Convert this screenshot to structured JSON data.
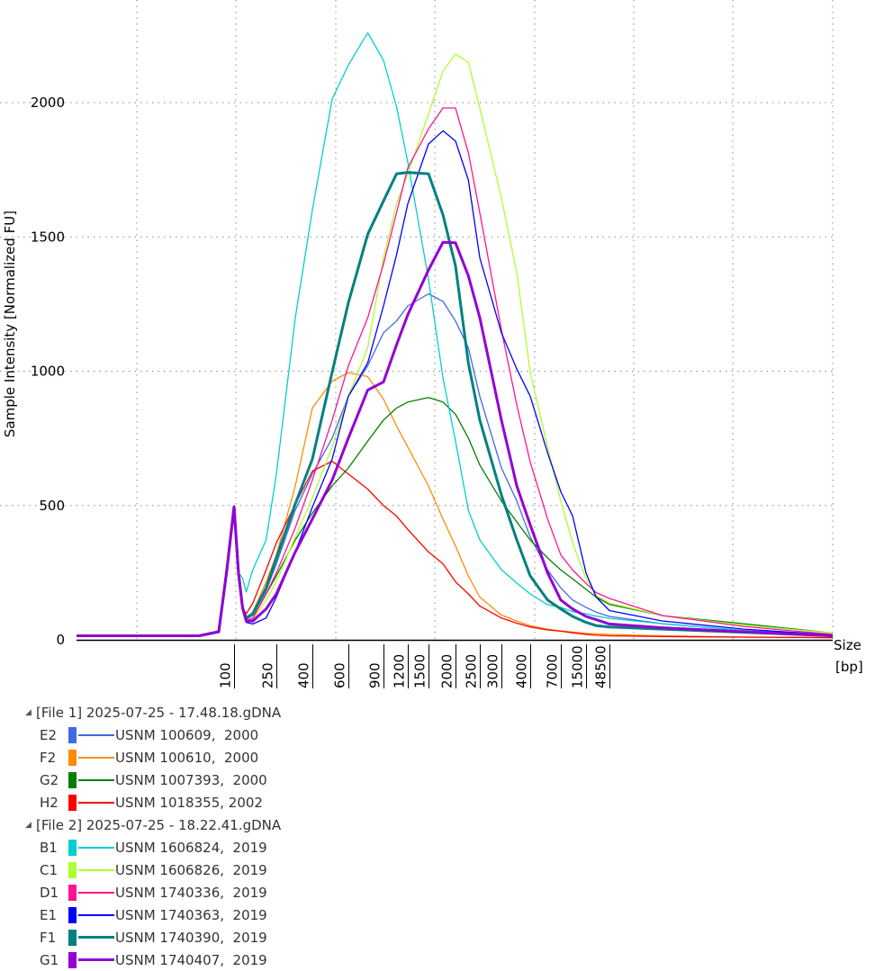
{
  "chart_data": {
    "type": "line",
    "title": "",
    "ylabel": "Sample Intensity [Normalized FU]",
    "xlabel": "Size [bp]",
    "xlabel_line1": "Size",
    "xlabel_line2": "[bp]",
    "ylim": [
      0,
      2380
    ],
    "yticks": [
      0,
      500,
      1000,
      1500,
      2000
    ],
    "ytick_labels": [
      "0",
      "500",
      "1000",
      "1500",
      "2000"
    ],
    "xtick_labels": [
      "100",
      "250",
      "400",
      "600",
      "900",
      "1200",
      "1500",
      "2000",
      "2500",
      "3000",
      "4000",
      "7000",
      "15000",
      "48500"
    ],
    "xticks_bp": [
      100,
      250,
      400,
      600,
      900,
      1200,
      1500,
      2000,
      2500,
      3000,
      4000,
      7000,
      15000,
      48500
    ],
    "grid": "dotted",
    "x_bp": [
      10,
      60,
      80,
      90,
      100,
      110,
      120,
      130,
      150,
      200,
      250,
      320,
      400,
      500,
      600,
      750,
      900,
      1050,
      1200,
      1500,
      1750,
      2000,
      2250,
      2500,
      3000,
      3500,
      4000,
      5500,
      7000,
      10000,
      15000,
      25000,
      48500,
      100000,
      300000,
      1000000
    ],
    "series": [
      {
        "well": "E2",
        "name": "USNM 100609,  2000",
        "color": "#4169E1",
        "thick": false,
        "values": [
          15,
          15,
          30,
          260,
          495,
          250,
          120,
          75,
          92,
          182,
          283,
          483,
          617,
          751,
          907,
          1020,
          1143,
          1187,
          1243,
          1288,
          1260,
          1187,
          1087,
          907,
          640,
          517,
          383,
          260,
          193,
          148,
          121,
          103,
          87,
          60,
          35,
          15
        ]
      },
      {
        "well": "F2",
        "name": "USNM 100610,  2000",
        "color": "#FF8C00",
        "thick": false,
        "values": [
          15,
          15,
          30,
          260,
          495,
          250,
          120,
          81,
          103,
          215,
          316,
          573,
          863,
          963,
          995,
          980,
          896,
          796,
          718,
          573,
          450,
          349,
          238,
          159,
          92,
          70,
          53,
          40,
          33,
          29,
          24,
          22,
          20,
          15,
          10,
          8
        ]
      },
      {
        "well": "G2",
        "name": "USNM 1007393,  2000",
        "color": "#008000",
        "thick": false,
        "values": [
          15,
          15,
          30,
          260,
          495,
          250,
          120,
          70,
          81,
          171,
          238,
          372,
          472,
          573,
          640,
          740,
          818,
          863,
          885,
          902,
          885,
          840,
          751,
          651,
          517,
          439,
          372,
          305,
          260,
          227,
          188,
          159,
          132,
          90,
          60,
          25
        ]
      },
      {
        "well": "H2",
        "name": "USNM 1018355, 2002",
        "color": "#FF0000",
        "thick": false,
        "values": [
          15,
          15,
          30,
          260,
          495,
          250,
          120,
          97,
          136,
          260,
          361,
          505,
          628,
          665,
          617,
          561,
          500,
          461,
          411,
          327,
          283,
          216,
          171,
          126,
          81,
          62,
          48,
          37,
          32,
          26,
          20,
          17,
          15,
          12,
          10,
          8
        ]
      },
      {
        "well": "B1",
        "name": "USNM 1606824,  2019",
        "color": "#00CED1",
        "thick": false,
        "values": [
          15,
          15,
          30,
          260,
          495,
          250,
          230,
          178,
          261,
          372,
          616,
          1199,
          1600,
          2013,
          2140,
          2260,
          2157,
          1985,
          1779,
          1343,
          975,
          740,
          482,
          372,
          261,
          211,
          171,
          131,
          121,
          105,
          97,
          88,
          80,
          60,
          35,
          15
        ]
      },
      {
        "well": "C1",
        "name": "USNM 1606826,  2019",
        "color": "#ADFF2F",
        "thick": false,
        "values": [
          15,
          15,
          30,
          260,
          495,
          250,
          120,
          65,
          75,
          148,
          216,
          383,
          528,
          718,
          907,
          1087,
          1422,
          1623,
          1734,
          1958,
          2117,
          2181,
          2150,
          1980,
          1645,
          1366,
          997,
          718,
          517,
          361,
          227,
          165,
          137,
          90,
          55,
          25
        ]
      },
      {
        "well": "D1",
        "name": "USNM 1740336,  2019",
        "color": "#FF1493",
        "thick": false,
        "values": [
          15,
          15,
          30,
          260,
          495,
          250,
          120,
          70,
          81,
          171,
          249,
          417,
          595,
          818,
          1020,
          1199,
          1399,
          1590,
          1757,
          1902,
          1980,
          1980,
          1813,
          1590,
          1154,
          874,
          662,
          450,
          316,
          260,
          210,
          176,
          154,
          90,
          50,
          20
        ]
      },
      {
        "well": "E1",
        "name": "USNM 1740363,  2019",
        "color": "#0000FF",
        "thick": false,
        "values": [
          15,
          15,
          30,
          260,
          495,
          250,
          120,
          65,
          59,
          81,
          159,
          327,
          494,
          673,
          907,
          1031,
          1243,
          1433,
          1623,
          1846,
          1895,
          1857,
          1712,
          1422,
          1143,
          1008,
          907,
          696,
          551,
          461,
          249,
          159,
          109,
          70,
          40,
          18
        ]
      },
      {
        "well": "F1",
        "name": "USNM 1740390,  2019",
        "color": "#008080",
        "thick": true,
        "values": [
          15,
          15,
          30,
          260,
          495,
          250,
          120,
          81,
          97,
          193,
          305,
          506,
          673,
          997,
          1255,
          1510,
          1634,
          1735,
          1740,
          1735,
          1582,
          1392,
          1030,
          818,
          539,
          372,
          238,
          148,
          115,
          87,
          65,
          53,
          48,
          40,
          28,
          15
        ]
      },
      {
        "well": "G1",
        "name": "USNM 1740407,  2019",
        "color": "#9400D3",
        "thick": true,
        "values": [
          15,
          15,
          30,
          260,
          495,
          250,
          120,
          70,
          70,
          115,
          171,
          327,
          450,
          595,
          751,
          930,
          960,
          1098,
          1210,
          1377,
          1480,
          1478,
          1355,
          1199,
          818,
          573,
          428,
          249,
          148,
          115,
          87,
          75,
          59,
          45,
          30,
          15
        ]
      }
    ]
  },
  "legend": {
    "groups": [
      {
        "title": "[File 1] 2025-07-25 - 17.48.18.gDNA",
        "series_idx": [
          0,
          1,
          2,
          3
        ]
      },
      {
        "title": "[File 2] 2025-07-25 - 18.22.41.gDNA",
        "series_idx": [
          4,
          5,
          6,
          7,
          8,
          9
        ]
      }
    ]
  }
}
